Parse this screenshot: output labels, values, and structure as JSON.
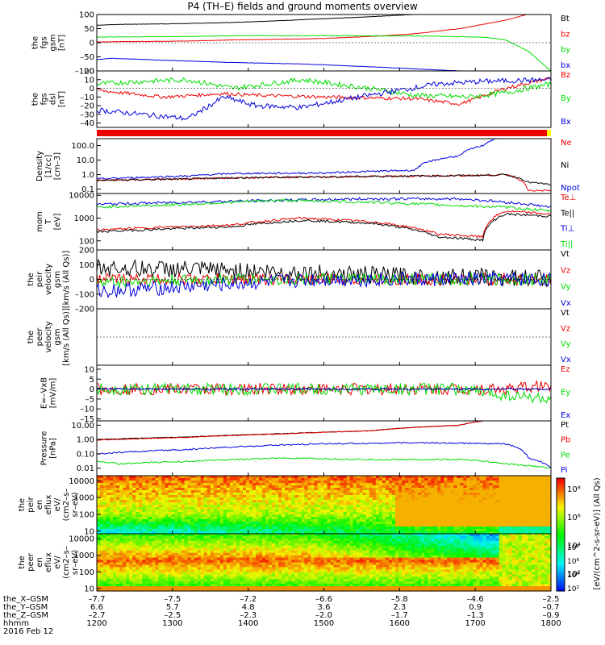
{
  "title": "P4 (TH–E) fields and ground moments overview",
  "colors": {
    "black": "#000000",
    "red": "#ee0000",
    "green": "#00dd00",
    "blue": "#0000dd"
  },
  "chart_data": [
    {
      "type": "line",
      "panel": "fgs-gsm",
      "ylabel": [
        "the",
        "fgs",
        "gsm",
        "[nT]"
      ],
      "ylim": [
        -100,
        100
      ],
      "yticks": [
        {
          "v": 100,
          "t": "100"
        },
        {
          "v": 50,
          "t": "50"
        },
        {
          "v": 0,
          "t": "0"
        },
        {
          "v": -50,
          "t": "–50"
        },
        {
          "v": -100,
          "t": "–100"
        }
      ],
      "series": [
        {
          "name": "Bt",
          "color": "#000000",
          "noise": 0.6,
          "x": [
            0,
            0.05,
            0.2,
            0.3,
            0.4,
            0.5,
            0.6,
            0.75,
            0.9
          ],
          "y": [
            62,
            65,
            68,
            72,
            78,
            85,
            92,
            105,
            120
          ]
        },
        {
          "name": "bz",
          "color": "#ee0000",
          "noise": 0.6,
          "x": [
            0,
            0.2,
            0.3,
            0.5,
            0.6,
            0.7,
            0.8,
            0.9,
            0.97
          ],
          "y": [
            3,
            6,
            10,
            15,
            22,
            32,
            50,
            80,
            110
          ]
        },
        {
          "name": "by",
          "color": "#00dd00",
          "noise": 0.8,
          "x": [
            0,
            0.2,
            0.3,
            0.5,
            0.7,
            0.85,
            0.9,
            0.95,
            1
          ],
          "y": [
            20,
            22,
            25,
            25,
            24,
            20,
            10,
            -30,
            -100
          ]
        },
        {
          "name": "bx",
          "color": "#0000dd",
          "noise": 0.6,
          "x": [
            0,
            0.03,
            0.2,
            0.3,
            0.45,
            0.6,
            0.8,
            0.9
          ],
          "y": [
            -60,
            -55,
            -65,
            -70,
            -75,
            -85,
            -100,
            -115
          ]
        }
      ]
    },
    {
      "type": "line",
      "panel": "fgs-dsl",
      "ylabel": [
        "the",
        "fgs",
        "dsl",
        "[nT]"
      ],
      "ylim": [
        -45,
        20
      ],
      "yticks": [
        {
          "v": 20,
          "t": "20"
        },
        {
          "v": 10,
          "t": "10"
        },
        {
          "v": 0,
          "t": "0"
        },
        {
          "v": -10,
          "t": "–10"
        },
        {
          "v": -20,
          "t": "–20"
        },
        {
          "v": -30,
          "t": "–30"
        },
        {
          "v": -40,
          "t": "–40"
        }
      ],
      "series": [
        {
          "name": "Bz",
          "color": "#ee0000",
          "noise": 2,
          "x": [
            0,
            0.05,
            0.15,
            0.28,
            0.35,
            0.5,
            0.7,
            0.8,
            0.9,
            1
          ],
          "y": [
            -2,
            -5,
            -10,
            -6,
            -8,
            -10,
            -12,
            -18,
            0,
            12
          ]
        },
        {
          "name": "By",
          "color": "#00dd00",
          "noise": 3,
          "x": [
            0,
            0.1,
            0.2,
            0.3,
            0.45,
            0.6,
            0.7,
            0.82,
            0.9,
            1
          ],
          "y": [
            5,
            8,
            10,
            0,
            10,
            0,
            -8,
            -10,
            -5,
            5
          ]
        },
        {
          "name": "Bx",
          "color": "#0000dd",
          "noise": 3,
          "x": [
            0,
            0.1,
            0.2,
            0.28,
            0.35,
            0.45,
            0.6,
            0.75,
            0.85,
            1
          ],
          "y": [
            -25,
            -30,
            -35,
            -10,
            -20,
            -22,
            -8,
            5,
            8,
            10
          ]
        }
      ]
    },
    {
      "type": "line",
      "panel": "density",
      "ylabel": [
        "Density",
        "[1/cc]",
        "[cm–3]"
      ],
      "ylim": [
        0.05,
        300
      ],
      "log": true,
      "yticks": [
        {
          "v": 100,
          "t": "100.0"
        },
        {
          "v": 10,
          "t": "10.0"
        },
        {
          "v": 1,
          "t": "1.0"
        },
        {
          "v": 0.1,
          "t": "0.1"
        }
      ],
      "series": [
        {
          "name": "Ne",
          "color": "#ee0000",
          "noise": 0.06,
          "x": [
            0,
            0.2,
            0.3,
            0.5,
            0.7,
            0.85,
            0.9,
            0.95,
            1
          ],
          "y": [
            0.4,
            0.5,
            0.6,
            0.7,
            0.8,
            0.9,
            1.0,
            0.08,
            0.08
          ]
        },
        {
          "name": "Ni",
          "color": "#000000",
          "noise": 0.06,
          "x": [
            0,
            0.2,
            0.3,
            0.5,
            0.7,
            0.85,
            0.9,
            0.95,
            1
          ],
          "y": [
            0.4,
            0.5,
            0.6,
            0.7,
            0.8,
            0.9,
            1.0,
            0.3,
            0.2
          ]
        },
        {
          "name": "Npot",
          "color": "#0000dd",
          "noise": 0.06,
          "x": [
            0,
            0.2,
            0.3,
            0.5,
            0.7,
            0.8,
            0.85,
            0.88
          ],
          "y": [
            0.5,
            0.8,
            1.2,
            1.3,
            2.0,
            20,
            100,
            300
          ]
        }
      ]
    },
    {
      "type": "line",
      "panel": "mom-t",
      "ylabel": [
        "mom",
        "T",
        "[eV]"
      ],
      "ylim": [
        40,
        12000
      ],
      "log": true,
      "yticks": [
        {
          "v": 10000,
          "t": "10000"
        },
        {
          "v": 1000,
          "t": "1000"
        },
        {
          "v": 100,
          "t": "100"
        }
      ],
      "series": [
        {
          "name": "Te⊥",
          "color": "#ee0000",
          "noise": 0.05,
          "x": [
            0,
            0.15,
            0.3,
            0.45,
            0.6,
            0.75,
            0.85,
            0.9,
            1
          ],
          "y": [
            300,
            400,
            500,
            1000,
            700,
            200,
            150,
            2000,
            1500
          ]
        },
        {
          "name": "Te||",
          "color": "#000000",
          "noise": 0.05,
          "x": [
            0,
            0.15,
            0.3,
            0.45,
            0.6,
            0.75,
            0.85,
            0.9,
            1
          ],
          "y": [
            250,
            330,
            420,
            800,
            600,
            150,
            110,
            1500,
            1200
          ]
        },
        {
          "name": "Ti⊥",
          "color": "#0000dd",
          "noise": 0.06,
          "x": [
            0,
            0.2,
            0.4,
            0.6,
            0.8,
            0.9,
            1
          ],
          "y": [
            4000,
            5000,
            6000,
            7000,
            7000,
            5000,
            3000
          ]
        },
        {
          "name": "Ti||",
          "color": "#00dd00",
          "noise": 0.06,
          "x": [
            0,
            0.2,
            0.4,
            0.6,
            0.8,
            0.9,
            1
          ],
          "y": [
            3000,
            4000,
            6000,
            5000,
            3500,
            3000,
            2000
          ]
        }
      ]
    },
    {
      "type": "line",
      "panel": "peir-velocity",
      "ylabel": [
        "the",
        "peir",
        "velocity",
        "gsm",
        "[km/s (All Qs)]"
      ],
      "ylim": [
        -200,
        200
      ],
      "yticks": [
        {
          "v": 200,
          "t": "200"
        },
        {
          "v": 100,
          "t": "100"
        },
        {
          "v": 0,
          "t": "0"
        },
        {
          "v": -100,
          "t": "–100"
        },
        {
          "v": -200,
          "t": "–200"
        }
      ],
      "series": [
        {
          "name": "Vt",
          "color": "#000000",
          "noise": 60,
          "x": [
            0,
            0.3,
            0.5,
            0.7,
            1
          ],
          "y": [
            80,
            60,
            40,
            20,
            10
          ]
        },
        {
          "name": "Vz",
          "color": "#ee0000",
          "noise": 40,
          "x": [
            0,
            0.3,
            0.5,
            1
          ],
          "y": [
            0,
            0,
            0,
            0
          ]
        },
        {
          "name": "Vy",
          "color": "#00dd00",
          "noise": 40,
          "x": [
            0,
            0.3,
            0.5,
            1
          ],
          "y": [
            -20,
            0,
            0,
            0
          ]
        },
        {
          "name": "Vx",
          "color": "#0000dd",
          "noise": 50,
          "x": [
            0,
            0.2,
            0.3,
            0.5,
            1
          ],
          "y": [
            -80,
            -50,
            -30,
            0,
            0
          ]
        }
      ]
    },
    {
      "type": "line",
      "panel": "peer-velocity",
      "ylabel": [
        "the",
        "peer",
        "velocity",
        "gsm",
        "[km/s (All Qs)]"
      ],
      "ylim": [
        -200,
        200
      ],
      "yticks": [],
      "series": [
        {
          "name": "Vt",
          "color": "#000000",
          "x": [],
          "y": []
        },
        {
          "name": "Vz",
          "color": "#ee0000",
          "x": [],
          "y": []
        },
        {
          "name": "Vy",
          "color": "#00dd00",
          "x": [],
          "y": []
        },
        {
          "name": "Vx",
          "color": "#0000dd",
          "x": [],
          "y": []
        }
      ]
    },
    {
      "type": "line",
      "panel": "e-field",
      "ylabel": [
        "E=–VxB",
        "[mV/m]"
      ],
      "ylim": [
        -16,
        12
      ],
      "yticks": [
        {
          "v": 10,
          "t": "10"
        },
        {
          "v": 5,
          "t": "5"
        },
        {
          "v": 0,
          "t": "0"
        },
        {
          "v": -5,
          "t": "–5"
        },
        {
          "v": -10,
          "t": "–10"
        },
        {
          "v": -15,
          "t": "–15"
        }
      ],
      "series": [
        {
          "name": "Ez",
          "color": "#ee0000",
          "noise": 3,
          "x": [
            0,
            0.5,
            0.8,
            0.9,
            1
          ],
          "y": [
            0,
            0,
            0,
            0,
            2
          ]
        },
        {
          "name": "Ey",
          "color": "#00dd00",
          "noise": 3,
          "x": [
            0,
            0.5,
            0.8,
            0.9,
            1
          ],
          "y": [
            0,
            0,
            0,
            -3,
            -5
          ]
        },
        {
          "name": "Ex",
          "color": "#0000dd",
          "noise": 0.5,
          "x": [
            0,
            1
          ],
          "y": [
            0,
            0
          ]
        }
      ]
    },
    {
      "type": "line",
      "panel": "pressure",
      "ylabel": [
        "Pressure",
        "[nPa]"
      ],
      "ylim": [
        0.003,
        20
      ],
      "log": true,
      "yticks": [
        {
          "v": 10,
          "t": "10.00"
        },
        {
          "v": 1,
          "t": "1.00"
        },
        {
          "v": 0.1,
          "t": "0.10"
        },
        {
          "v": 0.01,
          "t": "0.01"
        }
      ],
      "series": [
        {
          "name": "Pt",
          "color": "#000000",
          "noise": 0.02,
          "x": [
            0,
            0.2,
            0.4,
            0.6,
            0.8,
            0.85
          ],
          "y": [
            1.0,
            1.5,
            2.5,
            4,
            10,
            20
          ]
        },
        {
          "name": "Pb",
          "color": "#ee0000",
          "noise": 0.02,
          "x": [
            0,
            0.2,
            0.4,
            0.6,
            0.8,
            0.85
          ],
          "y": [
            0.9,
            1.4,
            2.4,
            4,
            10,
            20
          ]
        },
        {
          "name": "Pe",
          "color": "#00dd00",
          "noise": 0.05,
          "x": [
            0,
            0.05,
            0.2,
            0.4,
            0.6,
            0.8,
            0.9,
            1
          ],
          "y": [
            0.03,
            0.02,
            0.03,
            0.05,
            0.04,
            0.04,
            0.02,
            0.01
          ]
        },
        {
          "name": "Pi",
          "color": "#0000dd",
          "noise": 0.05,
          "x": [
            0,
            0.2,
            0.3,
            0.5,
            0.7,
            0.9,
            0.95,
            1
          ],
          "y": [
            0.1,
            0.2,
            0.3,
            0.5,
            0.6,
            0.5,
            0.05,
            0.01
          ]
        }
      ]
    },
    {
      "type": "heatmap",
      "panel": "peir-eflux",
      "ylabel": [
        "the",
        "peir",
        "en",
        "eflux",
        "eV/",
        "(cm2–s–",
        "sr–eV)"
      ],
      "ylim": [
        7,
        20000
      ],
      "log": true,
      "yticks": [
        {
          "v": 10000,
          "t": "10000"
        },
        {
          "v": 1000,
          "t": "1000"
        },
        {
          "v": 100,
          "t": "100"
        },
        {
          "v": 10,
          "t": "10"
        }
      ]
    },
    {
      "type": "heatmap",
      "panel": "peer-eflux",
      "ylabel": [
        "the",
        "peer",
        "en",
        "eflux",
        "eV/",
        "(cm2–s–",
        "sr–eV)"
      ],
      "ylim": [
        7,
        20000
      ],
      "log": true,
      "yticks": [
        {
          "v": 10000,
          "t": "10000"
        },
        {
          "v": 1000,
          "t": "1000"
        },
        {
          "v": 100,
          "t": "100"
        },
        {
          "v": 10,
          "t": "10"
        }
      ]
    }
  ],
  "colorbar": {
    "label": "[eV/(cm^2-s-sr-eV)] (All Qs)",
    "ticks": [
      "10⁸",
      "10⁶",
      "10⁴",
      "10²"
    ]
  },
  "xaxis": {
    "rows": [
      {
        "label": "the_X–GSM",
        "values": [
          "–7.7",
          "–7.5",
          "–7.2",
          "–6.6",
          "–5.8",
          "–4.6",
          "–2.5"
        ]
      },
      {
        "label": "the_Y–GSM",
        "values": [
          "6.6",
          "5.7",
          "4.8",
          "3.6",
          "2.3",
          "0.9",
          "–0.7"
        ]
      },
      {
        "label": "the_Z–GSM",
        "values": [
          "–2.7",
          "–2.5",
          "–2.3",
          "–2.0",
          "–1.7",
          "–1.3",
          "–0.9"
        ]
      },
      {
        "label": "hhmm",
        "values": [
          "1200",
          "1300",
          "1400",
          "1500",
          "1600",
          "1700",
          "1800"
        ]
      }
    ],
    "date": "2016 Feb 12"
  }
}
